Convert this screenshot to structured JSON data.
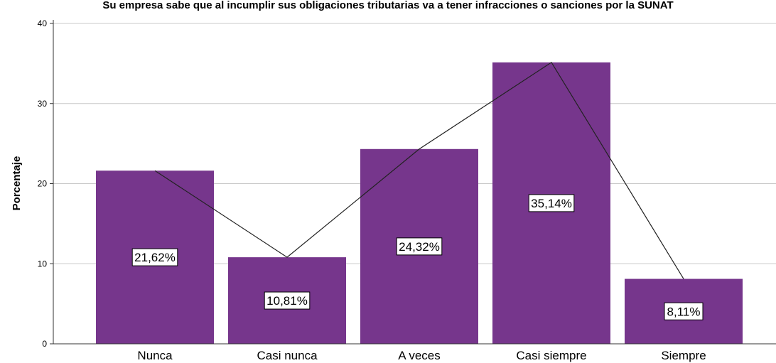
{
  "chart_data": {
    "type": "bar",
    "title": "Su empresa sabe que al incumplir sus obligaciones tributarias va a tener infracciones o sanciones por la SUNAT",
    "xlabel": "",
    "ylabel": "Porcentaje",
    "categories": [
      "Nunca",
      "Casi nunca",
      "A veces",
      "Casi siempre",
      "Siempre"
    ],
    "values": [
      21.62,
      10.81,
      24.32,
      35.14,
      8.11
    ],
    "data_labels": [
      "21,62%",
      "10,81%",
      "24,32%",
      "35,14%",
      "8,11%"
    ],
    "ylim": [
      0,
      40
    ],
    "yticks": [
      0,
      10,
      20,
      30,
      40
    ],
    "ytick_labels": [
      "0",
      "10",
      "20",
      "30",
      "40"
    ],
    "grid": true,
    "overlay_line": true,
    "colors": {
      "bar": "#76368C",
      "line": "#222222",
      "grid": "#c8c8c8",
      "axis": "#333333"
    }
  }
}
